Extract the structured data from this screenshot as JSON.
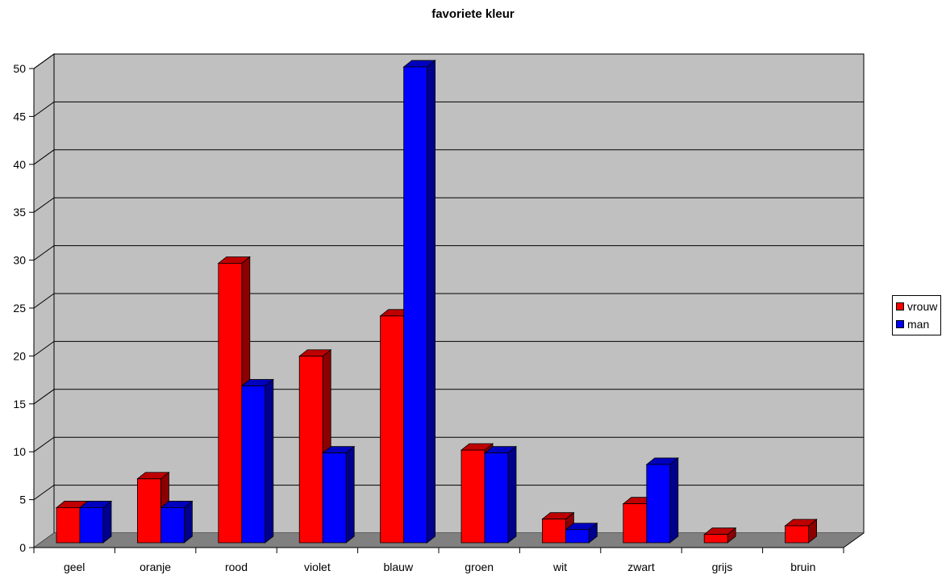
{
  "chart_data": {
    "type": "bar",
    "title": "favoriete kleur",
    "categories": [
      "geel",
      "oranje",
      "rood",
      "violet",
      "blauw",
      "groen",
      "wit",
      "zwart",
      "grijs",
      "bruin"
    ],
    "series": [
      {
        "name": "vrouw",
        "color": "#ff0000",
        "values": [
          3.5,
          6.5,
          29,
          19.3,
          23.5,
          9.5,
          2.3,
          3.9,
          0.7,
          1.6
        ]
      },
      {
        "name": "man",
        "color": "#0000ff",
        "values": [
          3.5,
          3.5,
          16.2,
          9.2,
          49.5,
          9.2,
          1.2,
          8,
          0,
          0
        ]
      }
    ],
    "yticks": [
      0,
      5,
      10,
      15,
      20,
      25,
      30,
      35,
      40,
      45,
      50
    ],
    "ylim": [
      0,
      50
    ],
    "xlabel": "",
    "ylabel": "",
    "grid": true,
    "legend": "right",
    "wall_color": "#c0c0c0",
    "floor_color": "#808080"
  }
}
